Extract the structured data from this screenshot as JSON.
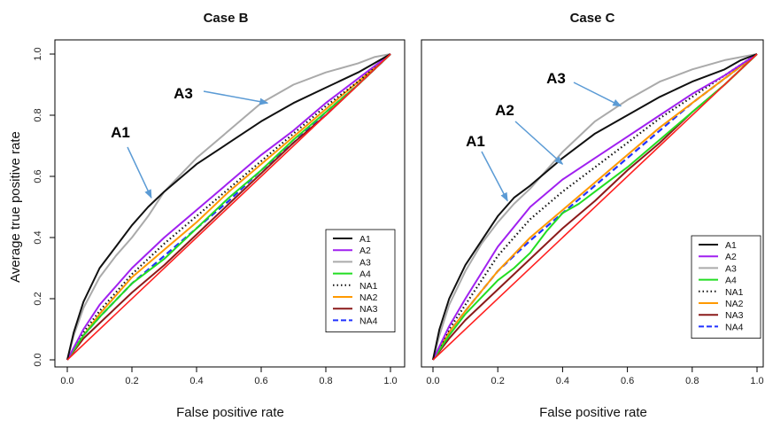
{
  "chart_data": [
    {
      "type": "line",
      "title": "Case B",
      "xlabel": "False positive rate",
      "ylabel": "Average true positive rate",
      "xlim": [
        0,
        1
      ],
      "ylim": [
        0,
        1
      ],
      "xticks": [
        "0.0",
        "0.2",
        "0.4",
        "0.6",
        "0.8",
        "1.0"
      ],
      "yticks": [
        "0.0",
        "0.2",
        "0.4",
        "0.6",
        "0.8",
        "1.0"
      ],
      "grid": false,
      "legend_position": "bottom-right",
      "reference_line": {
        "color": "#ff2020",
        "points": [
          [
            0,
            0
          ],
          [
            1,
            1
          ]
        ]
      },
      "annotations": [
        {
          "text": "A3",
          "target": [
            0.62,
            0.84
          ]
        },
        {
          "text": "A1",
          "target": [
            0.26,
            0.53
          ]
        }
      ],
      "series": [
        {
          "name": "A1",
          "color": "#111111",
          "dash": "solid",
          "x": [
            0,
            0.02,
            0.05,
            0.1,
            0.15,
            0.2,
            0.25,
            0.3,
            0.4,
            0.5,
            0.6,
            0.7,
            0.8,
            0.9,
            0.95,
            1
          ],
          "y": [
            0,
            0.09,
            0.19,
            0.3,
            0.37,
            0.44,
            0.5,
            0.55,
            0.64,
            0.71,
            0.78,
            0.84,
            0.89,
            0.94,
            0.97,
            1
          ]
        },
        {
          "name": "A2",
          "color": "#a020f0",
          "dash": "solid",
          "x": [
            0,
            0.05,
            0.1,
            0.2,
            0.3,
            0.4,
            0.5,
            0.6,
            0.7,
            0.8,
            0.9,
            1
          ],
          "y": [
            0,
            0.1,
            0.18,
            0.3,
            0.4,
            0.49,
            0.58,
            0.67,
            0.75,
            0.84,
            0.92,
            1
          ]
        },
        {
          "name": "A3",
          "color": "#aaaaaa",
          "dash": "solid",
          "x": [
            0,
            0.02,
            0.05,
            0.1,
            0.15,
            0.2,
            0.25,
            0.3,
            0.4,
            0.5,
            0.6,
            0.7,
            0.8,
            0.9,
            0.95,
            1
          ],
          "y": [
            0,
            0.08,
            0.17,
            0.27,
            0.34,
            0.4,
            0.47,
            0.55,
            0.66,
            0.75,
            0.84,
            0.9,
            0.94,
            0.97,
            0.99,
            1
          ]
        },
        {
          "name": "A4",
          "color": "#22dd22",
          "dash": "solid",
          "x": [
            0,
            0.05,
            0.1,
            0.2,
            0.3,
            0.4,
            0.5,
            0.6,
            0.7,
            0.8,
            0.9,
            1
          ],
          "y": [
            0,
            0.08,
            0.14,
            0.25,
            0.33,
            0.43,
            0.53,
            0.62,
            0.72,
            0.81,
            0.9,
            1
          ]
        },
        {
          "name": "NA1",
          "color": "#111111",
          "dash": "dotted",
          "x": [
            0,
            0.05,
            0.1,
            0.2,
            0.3,
            0.4,
            0.5,
            0.6,
            0.7,
            0.8,
            0.9,
            1
          ],
          "y": [
            0,
            0.09,
            0.16,
            0.28,
            0.38,
            0.47,
            0.56,
            0.65,
            0.74,
            0.83,
            0.91,
            1
          ]
        },
        {
          "name": "NA2",
          "color": "#ff9900",
          "dash": "solid",
          "x": [
            0,
            0.05,
            0.1,
            0.2,
            0.3,
            0.4,
            0.5,
            0.6,
            0.7,
            0.8,
            0.9,
            1
          ],
          "y": [
            0,
            0.08,
            0.15,
            0.27,
            0.36,
            0.45,
            0.55,
            0.64,
            0.73,
            0.82,
            0.91,
            1
          ]
        },
        {
          "name": "NA3",
          "color": "#8b1a1a",
          "dash": "solid",
          "x": [
            0,
            0.05,
            0.1,
            0.2,
            0.3,
            0.4,
            0.5,
            0.6,
            0.7,
            0.8,
            0.9,
            1
          ],
          "y": [
            0,
            0.07,
            0.12,
            0.22,
            0.31,
            0.41,
            0.51,
            0.61,
            0.71,
            0.8,
            0.9,
            1
          ]
        },
        {
          "name": "NA4",
          "color": "#2233ff",
          "dash": "dashed",
          "x": [
            0,
            0.05,
            0.1,
            0.2,
            0.3,
            0.4,
            0.5,
            0.6,
            0.7,
            0.8,
            0.9,
            1
          ],
          "y": [
            0,
            0.08,
            0.14,
            0.25,
            0.34,
            0.43,
            0.52,
            0.62,
            0.71,
            0.81,
            0.9,
            1
          ]
        }
      ]
    },
    {
      "type": "line",
      "title": "Case C",
      "xlabel": "False positive rate",
      "ylabel": "",
      "xlim": [
        0,
        1
      ],
      "ylim": [
        0,
        1
      ],
      "xticks": [
        "0.0",
        "0.2",
        "0.4",
        "0.6",
        "0.8",
        "1.0"
      ],
      "yticks": [],
      "grid": false,
      "legend_position": "bottom-right",
      "reference_line": {
        "color": "#ff2020",
        "points": [
          [
            0,
            0
          ],
          [
            1,
            1
          ]
        ]
      },
      "annotations": [
        {
          "text": "A3",
          "target": [
            0.58,
            0.83
          ]
        },
        {
          "text": "A2",
          "target": [
            0.4,
            0.64
          ]
        },
        {
          "text": "A1",
          "target": [
            0.23,
            0.52
          ]
        }
      ],
      "series": [
        {
          "name": "A1",
          "color": "#111111",
          "dash": "solid",
          "x": [
            0,
            0.02,
            0.05,
            0.1,
            0.15,
            0.2,
            0.25,
            0.3,
            0.4,
            0.5,
            0.6,
            0.7,
            0.8,
            0.9,
            0.95,
            1
          ],
          "y": [
            0,
            0.1,
            0.2,
            0.31,
            0.39,
            0.47,
            0.53,
            0.57,
            0.66,
            0.74,
            0.8,
            0.86,
            0.91,
            0.95,
            0.98,
            1
          ]
        },
        {
          "name": "A2",
          "color": "#a020f0",
          "dash": "solid",
          "x": [
            0,
            0.05,
            0.1,
            0.2,
            0.3,
            0.4,
            0.5,
            0.6,
            0.7,
            0.8,
            0.9,
            1
          ],
          "y": [
            0,
            0.11,
            0.2,
            0.37,
            0.5,
            0.59,
            0.66,
            0.73,
            0.8,
            0.87,
            0.93,
            1
          ]
        },
        {
          "name": "A3",
          "color": "#aaaaaa",
          "dash": "solid",
          "x": [
            0,
            0.02,
            0.05,
            0.1,
            0.15,
            0.2,
            0.25,
            0.3,
            0.4,
            0.5,
            0.6,
            0.7,
            0.8,
            0.9,
            0.95,
            1
          ],
          "y": [
            0,
            0.08,
            0.18,
            0.29,
            0.38,
            0.45,
            0.51,
            0.56,
            0.68,
            0.78,
            0.85,
            0.91,
            0.95,
            0.98,
            0.99,
            1
          ]
        },
        {
          "name": "A4",
          "color": "#22dd22",
          "dash": "solid",
          "x": [
            0,
            0.05,
            0.1,
            0.2,
            0.25,
            0.3,
            0.35,
            0.4,
            0.45,
            0.5,
            0.6,
            0.7,
            0.8,
            0.9,
            1
          ],
          "y": [
            0,
            0.08,
            0.15,
            0.26,
            0.3,
            0.35,
            0.42,
            0.48,
            0.51,
            0.55,
            0.63,
            0.72,
            0.81,
            0.9,
            1
          ]
        },
        {
          "name": "NA1",
          "color": "#111111",
          "dash": "dotted",
          "x": [
            0,
            0.05,
            0.1,
            0.2,
            0.3,
            0.4,
            0.5,
            0.6,
            0.7,
            0.8,
            0.9,
            1
          ],
          "y": [
            0,
            0.1,
            0.18,
            0.34,
            0.46,
            0.55,
            0.63,
            0.71,
            0.79,
            0.86,
            0.93,
            1
          ]
        },
        {
          "name": "NA2",
          "color": "#ff9900",
          "dash": "solid",
          "x": [
            0,
            0.05,
            0.1,
            0.2,
            0.3,
            0.4,
            0.5,
            0.6,
            0.7,
            0.8,
            0.9,
            1
          ],
          "y": [
            0,
            0.09,
            0.16,
            0.29,
            0.4,
            0.49,
            0.58,
            0.67,
            0.76,
            0.84,
            0.92,
            1
          ]
        },
        {
          "name": "NA3",
          "color": "#8b1a1a",
          "dash": "solid",
          "x": [
            0,
            0.05,
            0.1,
            0.2,
            0.3,
            0.4,
            0.5,
            0.6,
            0.7,
            0.8,
            0.9,
            1
          ],
          "y": [
            0,
            0.07,
            0.13,
            0.23,
            0.33,
            0.43,
            0.52,
            0.62,
            0.71,
            0.81,
            0.9,
            1
          ]
        },
        {
          "name": "NA4",
          "color": "#2233ff",
          "dash": "dashed",
          "x": [
            0,
            0.05,
            0.1,
            0.2,
            0.3,
            0.4,
            0.5,
            0.6,
            0.7,
            0.8,
            0.9,
            1
          ],
          "y": [
            0,
            0.09,
            0.16,
            0.29,
            0.39,
            0.48,
            0.57,
            0.66,
            0.75,
            0.84,
            0.92,
            1
          ]
        }
      ]
    }
  ]
}
